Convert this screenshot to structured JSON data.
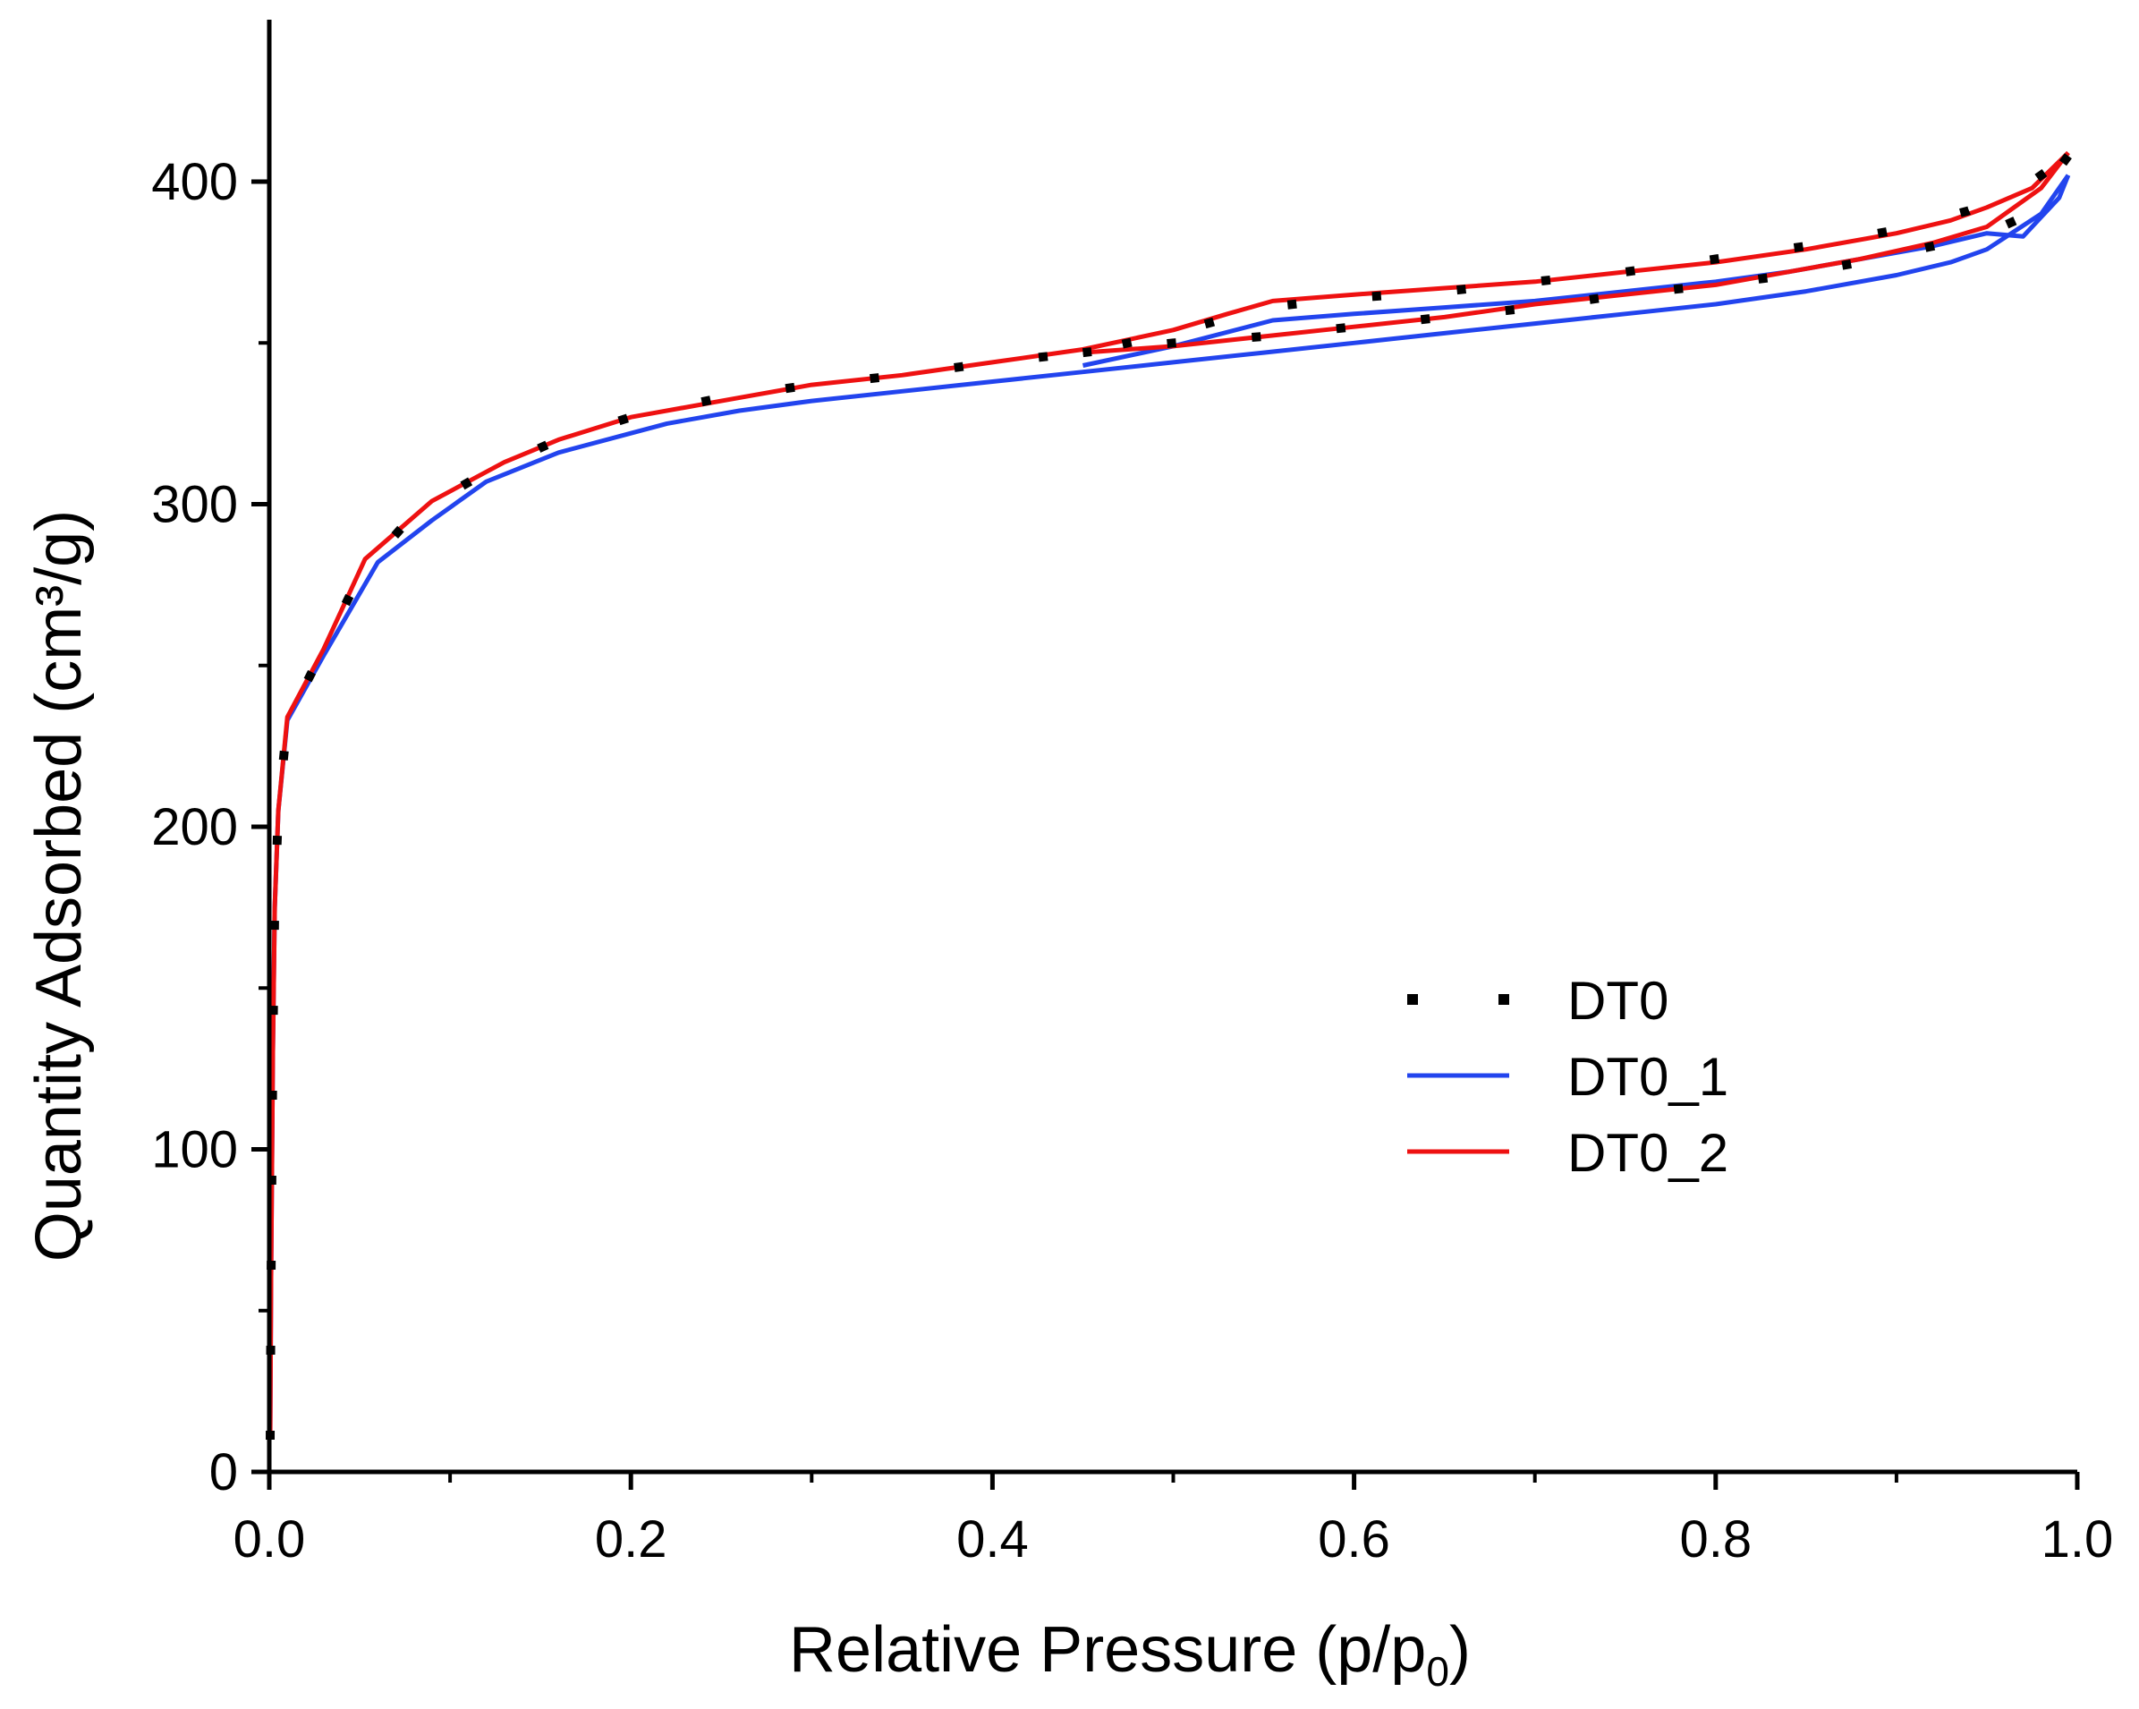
{
  "chart_data": {
    "type": "line",
    "title": "",
    "xlabel": "Relative Pressure (p/p",
    "xlabel_sub": "0",
    "xlabel_tail": ")",
    "ylabel": "Quantity Adsorbed (cm³/g)",
    "xlim": [
      0,
      1.0
    ],
    "ylim": [
      0,
      450
    ],
    "x_major_ticks": [
      0.0,
      0.2,
      0.4,
      0.6,
      0.8,
      1.0
    ],
    "x_tick_labels": [
      "0.0",
      "0.2",
      "0.4",
      "0.6",
      "0.8",
      "1.0"
    ],
    "x_minor_ticks": [
      0.1,
      0.3,
      0.5,
      0.7,
      0.9
    ],
    "y_major_ticks": [
      0,
      100,
      200,
      300,
      400
    ],
    "y_tick_labels": [
      "0",
      "100",
      "200",
      "300",
      "400"
    ],
    "y_minor_ticks": [
      50,
      150,
      250,
      350
    ],
    "legend_position": "center-right",
    "grid": false,
    "series": [
      {
        "name": "DT0",
        "color": "#000000",
        "style": "dotted",
        "adsorption": [
          [
            0.0005,
            10
          ],
          [
            0.001,
            60
          ],
          [
            0.002,
            130
          ],
          [
            0.003,
            175
          ],
          [
            0.005,
            205
          ],
          [
            0.01,
            233
          ],
          [
            0.03,
            255
          ],
          [
            0.05,
            278
          ],
          [
            0.08,
            297
          ],
          [
            0.12,
            310
          ],
          [
            0.16,
            320
          ],
          [
            0.2,
            327
          ],
          [
            0.25,
            333
          ],
          [
            0.3,
            337
          ],
          [
            0.35,
            340
          ],
          [
            0.4,
            344
          ],
          [
            0.45,
            347
          ],
          [
            0.5,
            353
          ],
          [
            0.55,
            361
          ],
          [
            0.6,
            364
          ],
          [
            0.65,
            366
          ],
          [
            0.7,
            369
          ],
          [
            0.75,
            372
          ],
          [
            0.8,
            376
          ],
          [
            0.85,
            380
          ],
          [
            0.9,
            385
          ],
          [
            0.94,
            391
          ],
          [
            0.97,
            398
          ],
          [
            0.995,
            408
          ]
        ],
        "desorption": [
          [
            0.995,
            408
          ],
          [
            0.97,
            389
          ],
          [
            0.95,
            384
          ],
          [
            0.92,
            380
          ],
          [
            0.88,
            375
          ],
          [
            0.84,
            371
          ],
          [
            0.8,
            368
          ],
          [
            0.75,
            365
          ],
          [
            0.7,
            361
          ],
          [
            0.65,
            358
          ],
          [
            0.6,
            355
          ],
          [
            0.55,
            352
          ],
          [
            0.5,
            350
          ],
          [
            0.45,
            347
          ]
        ]
      },
      {
        "name": "DT0_1",
        "color": "#2244ee",
        "style": "solid",
        "adsorption": [
          [
            0.0005,
            10
          ],
          [
            0.001,
            60
          ],
          [
            0.002,
            130
          ],
          [
            0.003,
            175
          ],
          [
            0.005,
            205
          ],
          [
            0.01,
            233
          ],
          [
            0.03,
            253
          ],
          [
            0.06,
            282
          ],
          [
            0.09,
            295
          ],
          [
            0.12,
            307
          ],
          [
            0.16,
            316
          ],
          [
            0.2,
            322
          ],
          [
            0.22,
            325
          ],
          [
            0.26,
            329
          ],
          [
            0.3,
            332
          ],
          [
            0.35,
            335
          ],
          [
            0.4,
            338
          ],
          [
            0.45,
            341
          ],
          [
            0.5,
            344
          ],
          [
            0.55,
            347
          ],
          [
            0.6,
            350
          ],
          [
            0.65,
            353
          ],
          [
            0.7,
            356
          ],
          [
            0.75,
            359
          ],
          [
            0.8,
            362
          ],
          [
            0.85,
            366
          ],
          [
            0.9,
            371
          ],
          [
            0.93,
            375
          ],
          [
            0.95,
            379
          ],
          [
            0.98,
            390
          ],
          [
            0.995,
            402
          ]
        ],
        "desorption": [
          [
            0.995,
            402
          ],
          [
            0.99,
            395
          ],
          [
            0.97,
            383
          ],
          [
            0.95,
            384
          ],
          [
            0.92,
            380
          ],
          [
            0.88,
            376
          ],
          [
            0.84,
            372
          ],
          [
            0.8,
            369
          ],
          [
            0.75,
            366
          ],
          [
            0.7,
            363
          ],
          [
            0.65,
            361
          ],
          [
            0.6,
            359
          ],
          [
            0.555,
            357
          ],
          [
            0.5,
            349
          ],
          [
            0.45,
            343
          ]
        ]
      },
      {
        "name": "DT0_2",
        "color": "#ee1111",
        "style": "solid",
        "adsorption": [
          [
            0.0005,
            10
          ],
          [
            0.001,
            60
          ],
          [
            0.002,
            130
          ],
          [
            0.003,
            175
          ],
          [
            0.005,
            205
          ],
          [
            0.01,
            234
          ],
          [
            0.03,
            255
          ],
          [
            0.053,
            283
          ],
          [
            0.09,
            301
          ],
          [
            0.13,
            313
          ],
          [
            0.16,
            320
          ],
          [
            0.2,
            327
          ],
          [
            0.25,
            332
          ],
          [
            0.3,
            337
          ],
          [
            0.35,
            340
          ],
          [
            0.4,
            344
          ],
          [
            0.45,
            348
          ],
          [
            0.5,
            354
          ],
          [
            0.53,
            359
          ],
          [
            0.555,
            363
          ],
          [
            0.6,
            365
          ],
          [
            0.65,
            367
          ],
          [
            0.7,
            369
          ],
          [
            0.75,
            372
          ],
          [
            0.8,
            375
          ],
          [
            0.85,
            379
          ],
          [
            0.9,
            384
          ],
          [
            0.93,
            388
          ],
          [
            0.95,
            392
          ],
          [
            0.975,
            398
          ],
          [
            0.995,
            409
          ]
        ],
        "desorption": [
          [
            0.995,
            409
          ],
          [
            0.98,
            398
          ],
          [
            0.95,
            386
          ],
          [
            0.92,
            381
          ],
          [
            0.88,
            376
          ],
          [
            0.84,
            372
          ],
          [
            0.8,
            368
          ],
          [
            0.75,
            365
          ],
          [
            0.7,
            362
          ],
          [
            0.65,
            358
          ],
          [
            0.6,
            355
          ],
          [
            0.55,
            352
          ],
          [
            0.5,
            349
          ],
          [
            0.45,
            347
          ]
        ]
      }
    ]
  }
}
